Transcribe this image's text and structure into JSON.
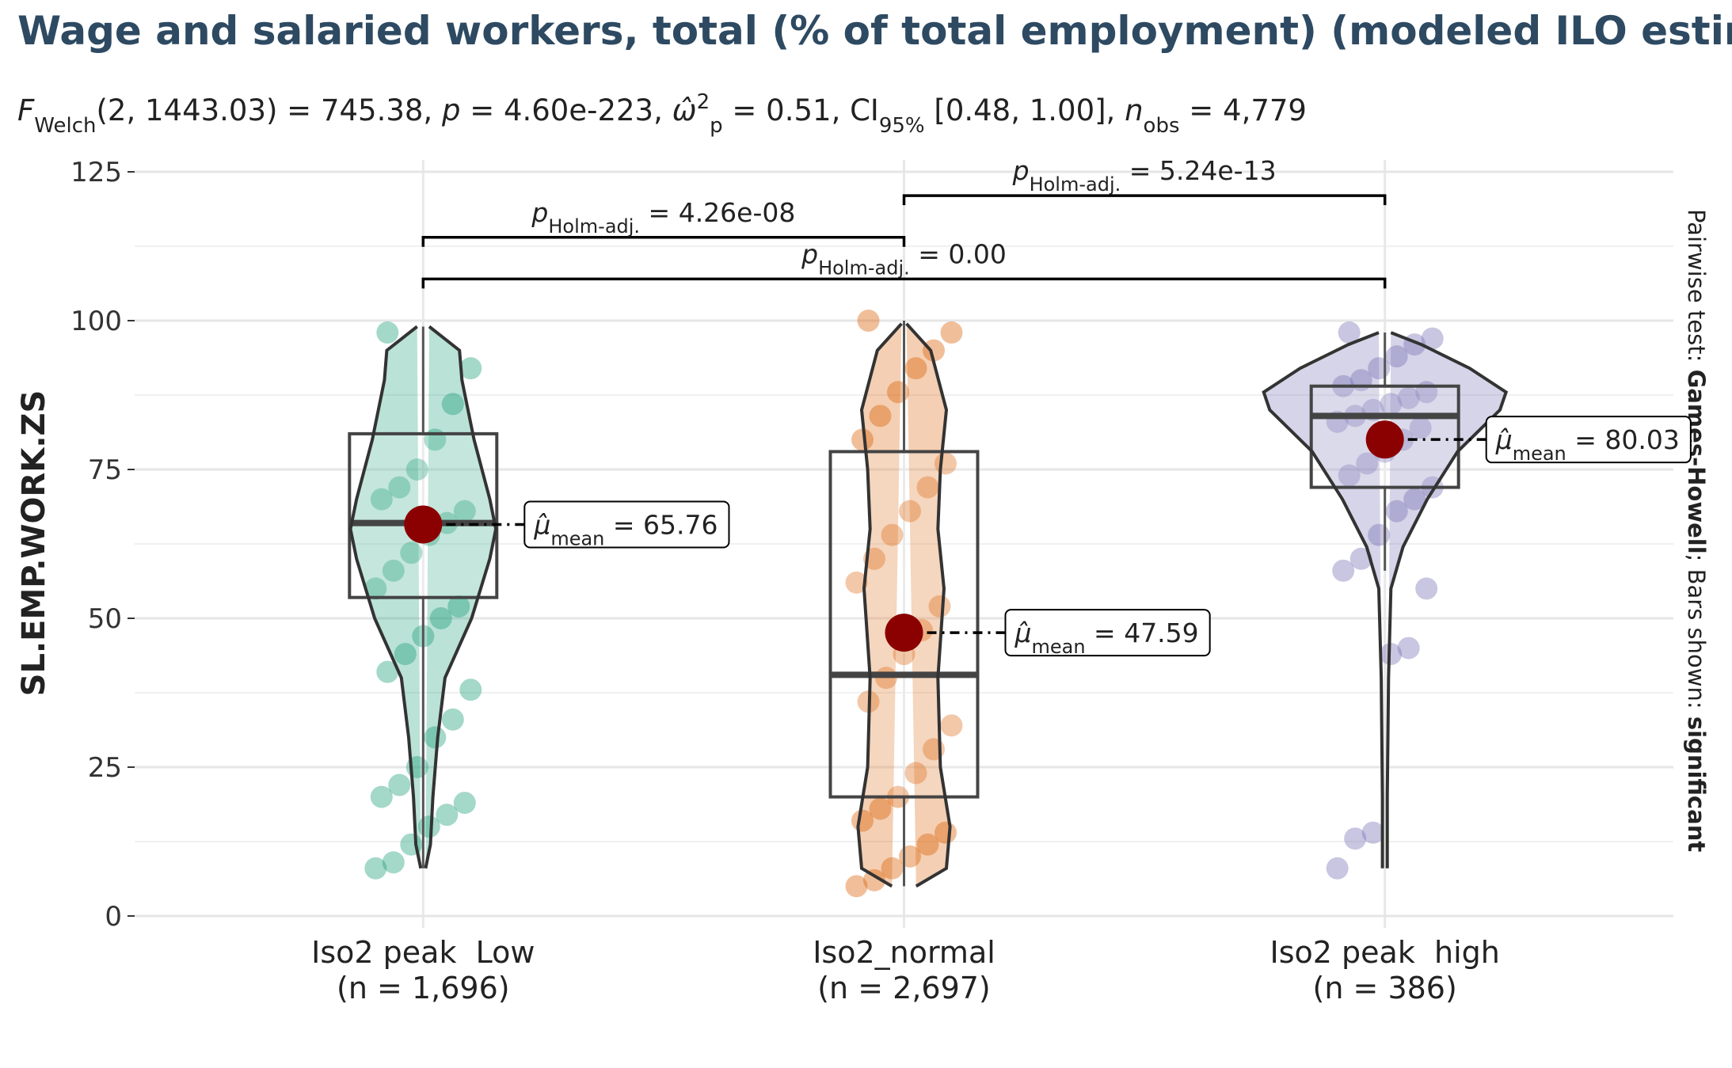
{
  "chart_data": {
    "type": "violin",
    "title": "Wage and salaried workers, total (% of total employment) (modeled ILO estimate)",
    "subtitle": [
      "F",
      "Welch",
      "(2, 1443.03) = 745.38, ",
      "p",
      " = 4.60e-223, ",
      "ω̂",
      "2",
      "p",
      " = 0.51, CI",
      "95%",
      " [0.48, 1.00], ",
      "n",
      "obs",
      " = 4,779"
    ],
    "y_label": "SL.EMP.WORK.ZS",
    "caption": [
      "Pairwise test: ",
      "Games-Howell",
      "; Bars shown: ",
      "significant"
    ],
    "ylim": [
      -2,
      127
    ],
    "yticks": [
      0,
      25,
      50,
      75,
      100,
      125
    ],
    "minor_yticks": [
      12.5,
      37.5,
      62.5,
      87.5,
      112.5
    ],
    "grid": true,
    "groups": [
      {
        "name": "Iso2 peak  Low",
        "n_label": "(n = 1,696)",
        "color": "#1b9e77",
        "box": {
          "whisker_low": 8,
          "q1": 53.5,
          "median": 66,
          "q3": 81,
          "whisker_high": 99
        },
        "mean": 65.76,
        "mean_label": [
          "μ̂",
          "mean",
          " = 65.76"
        ],
        "violin_y": [
          8,
          12,
          20,
          30,
          40,
          50,
          60,
          65,
          70,
          80,
          90,
          95,
          99
        ],
        "violin_width": [
          0.02,
          0.06,
          0.08,
          0.12,
          0.18,
          0.4,
          0.55,
          0.6,
          0.55,
          0.42,
          0.32,
          0.3,
          0.05
        ],
        "points": [
          8,
          9,
          12,
          15,
          17,
          19,
          20,
          22,
          25,
          30,
          33,
          38,
          41,
          44,
          47,
          50,
          52,
          55,
          58,
          61,
          64,
          66,
          68,
          70,
          72,
          75,
          80,
          86,
          92,
          98
        ]
      },
      {
        "name": "Iso2_normal",
        "n_label": "(n = 2,697)",
        "color": "#d95f02",
        "box": {
          "whisker_low": 5,
          "q1": 20,
          "median": 40.5,
          "q3": 78,
          "whisker_high": 100
        },
        "mean": 47.59,
        "mean_label": [
          "μ̂",
          "mean",
          " = 47.59"
        ],
        "violin_y": [
          5,
          8,
          15,
          25,
          40,
          55,
          65,
          75,
          85,
          95,
          99.5
        ],
        "violin_width": [
          0.1,
          0.35,
          0.38,
          0.3,
          0.28,
          0.33,
          0.28,
          0.3,
          0.35,
          0.22,
          0.02
        ],
        "points": [
          5,
          6,
          8,
          10,
          12,
          14,
          16,
          18,
          20,
          24,
          28,
          32,
          36,
          40,
          44,
          48,
          52,
          56,
          60,
          64,
          68,
          72,
          76,
          80,
          84,
          88,
          92,
          95,
          98,
          100
        ]
      },
      {
        "name": "Iso2 peak  high",
        "n_label": "(n = 386)",
        "color": "#7570b3",
        "box": {
          "whisker_low": 58,
          "q1": 72,
          "median": 84,
          "q3": 89,
          "whisker_high": 98
        },
        "mean": 80.03,
        "mean_label": [
          "μ̂",
          "mean",
          " = 80.03"
        ],
        "violin_y": [
          8,
          20,
          40,
          55,
          62,
          70,
          78,
          85,
          88,
          92,
          96,
          98
        ],
        "violin_width": [
          0.02,
          0.02,
          0.03,
          0.05,
          0.15,
          0.35,
          0.6,
          0.95,
          1,
          0.7,
          0.3,
          0.05
        ],
        "points": [
          8,
          13,
          14,
          44,
          45,
          55,
          58,
          60,
          64,
          68,
          70,
          72,
          74,
          76,
          78,
          80,
          82,
          83,
          84,
          85,
          86,
          87,
          88,
          89,
          90,
          92,
          94,
          96,
          97,
          98
        ]
      }
    ],
    "pairwise": [
      {
        "from": 0,
        "to": 1,
        "y": 114,
        "label": [
          "p",
          "Holm-adj.",
          " = 4.26e-08"
        ]
      },
      {
        "from": 1,
        "to": 2,
        "y": 121,
        "label": [
          "p",
          "Holm-adj.",
          " = 5.24e-13"
        ]
      },
      {
        "from": 0,
        "to": 2,
        "y": 107,
        "label": [
          "p",
          "Holm-adj.",
          " = 0.00"
        ]
      }
    ]
  }
}
